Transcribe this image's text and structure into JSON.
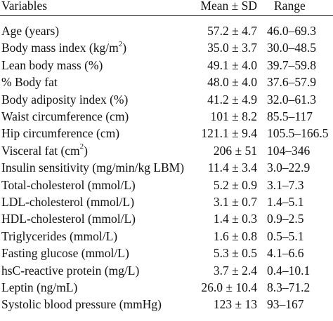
{
  "table": {
    "headers": {
      "variable": "Variables",
      "mean": "Mean ± SD",
      "range": "Range"
    },
    "rows": [
      {
        "variable": "Age (years)",
        "mean": "57.2 ± 4.7",
        "range": "46.0–69.3"
      },
      {
        "variable_main": "Body mass index (kg/m",
        "variable_sup": "2",
        "variable_end": ")",
        "mean": "35.0 ± 3.7",
        "range": "30.0–48.5"
      },
      {
        "variable": "Lean body mass (%)",
        "mean": "49.1 ± 4.0",
        "range": "39.7–59.8"
      },
      {
        "variable": "% Body fat",
        "mean": "48.0 ± 4.0",
        "range": "37.6–57.9"
      },
      {
        "variable": "Body adiposity index (%)",
        "mean": "41.2 ± 4.9",
        "range": "32.0–61.3"
      },
      {
        "variable": "Waist circumference (cm)",
        "mean": "101 ± 8.2",
        "range": "85.5–117"
      },
      {
        "variable": "Hip circumference (cm)",
        "mean": "121.1 ± 9.4",
        "range": "105.5–166.5"
      },
      {
        "variable_main": "Visceral fat (cm",
        "variable_sup": "2",
        "variable_end": ")",
        "mean": "206 ± 51",
        "range": "104–346"
      },
      {
        "variable": "Insulin sensitivity (mg/min/kg LBM)",
        "mean": "11.4 ± 3.4",
        "range": "3.0–22.9"
      },
      {
        "variable": "Total-cholesterol (mmol/L)",
        "mean": "5.2 ± 0.9",
        "range": "3.1–7.3"
      },
      {
        "variable": "LDL-cholesterol (mmol/L)",
        "mean": "3.1 ± 0.7",
        "range": "1.4–5.1"
      },
      {
        "variable": "HDL-cholesterol (mmol/L)",
        "mean": "1.4 ± 0.3",
        "range": "0.9–2.5"
      },
      {
        "variable": "Triglycerides (mmol/L)",
        "mean": "1.6 ± 0.8",
        "range": "0.5–5.1"
      },
      {
        "variable": "Fasting glucose (mmol/L)",
        "mean": "5.3 ± 0.5",
        "range": "4.1–6.6"
      },
      {
        "variable": "hsC-reactive protein (mg/L)",
        "mean": "3.7 ± 2.4",
        "range": "0.4–10.1"
      },
      {
        "variable": "Leptin (ng/mL)",
        "mean": "26.0 ± 10.4",
        "range": "8.3–71.2"
      },
      {
        "variable": "Systolic blood pressure (mmHg)",
        "mean": "123 ± 13",
        "range": "93–167"
      }
    ]
  }
}
